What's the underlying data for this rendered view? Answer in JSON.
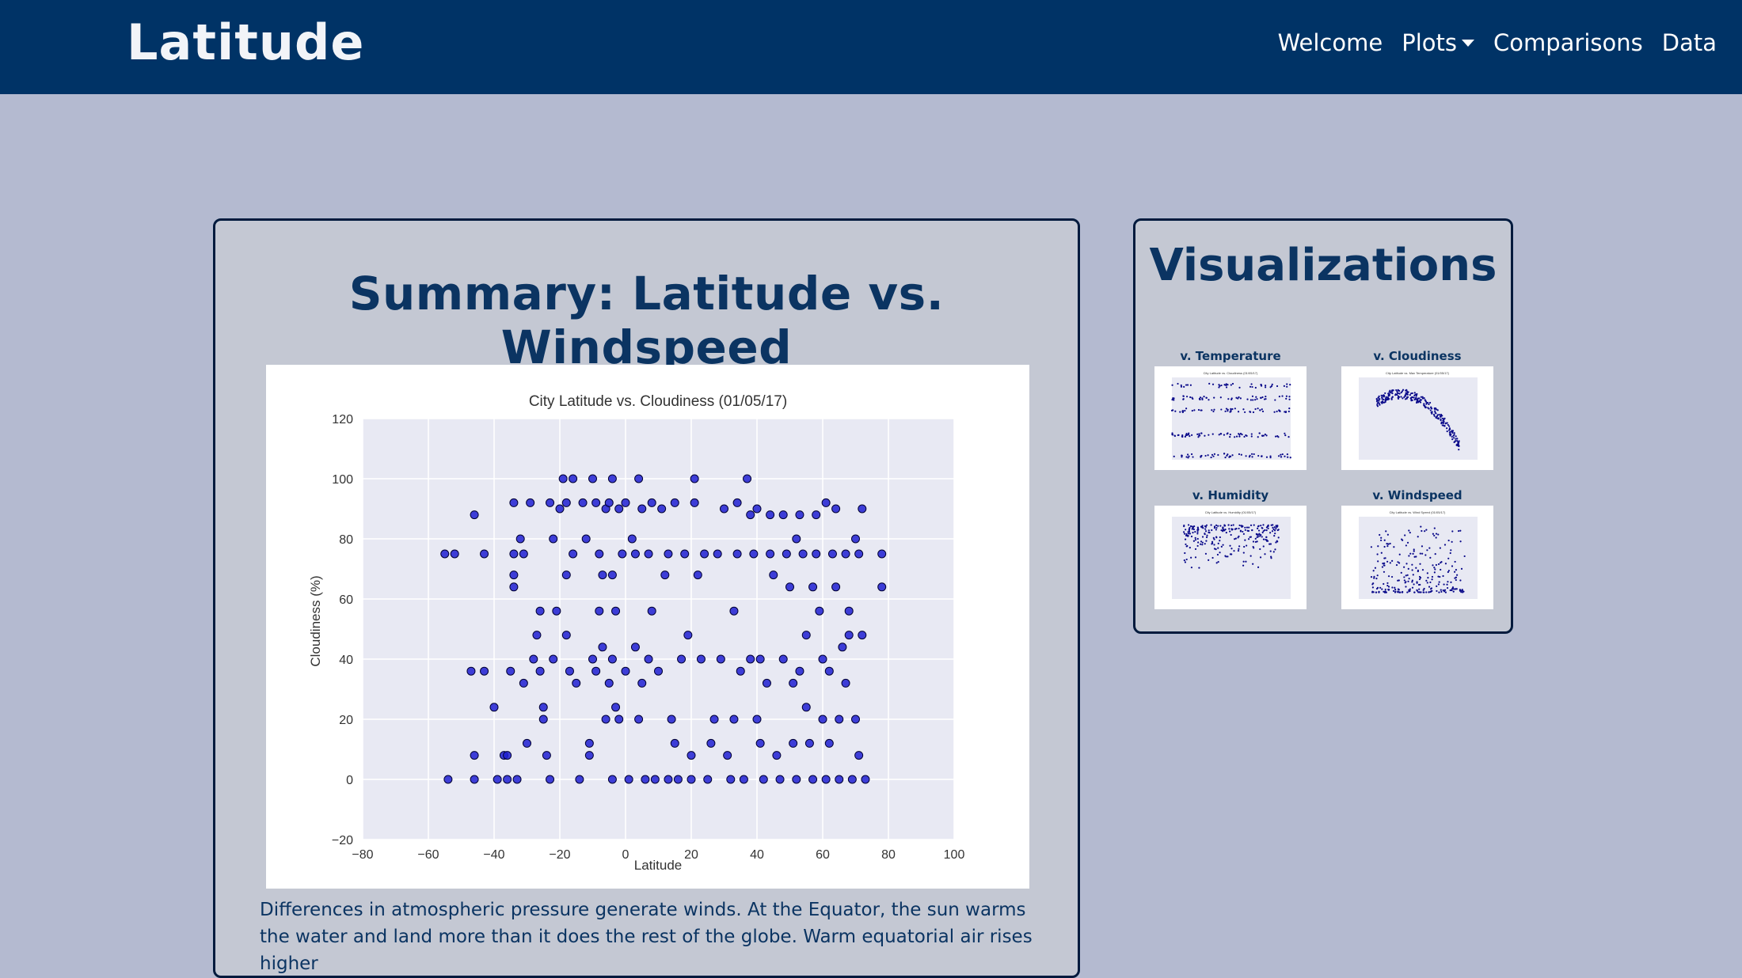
{
  "brand": "Latitude",
  "nav": {
    "items": [
      "Welcome",
      "Plots",
      "Comparisons",
      "Data"
    ]
  },
  "main": {
    "title": "Summary: Latitude vs. Windspeed",
    "text": "Differences in atmospheric pressure generate winds. At the Equator, the sun warms the water and land more than it does the rest of the globe. Warm equatorial air rises higher"
  },
  "side": {
    "title": "Visualizations",
    "thumbs": [
      {
        "label": "v. Temperature",
        "chart_title": "City Latitude vs. Cloudiness (01/05/17)"
      },
      {
        "label": "v. Cloudiness",
        "chart_title": "City Latitude vs. Max Temperature (01/05/17)"
      },
      {
        "label": "v. Humidity",
        "chart_title": "City Latitude vs. Humidity (01/05/17)"
      },
      {
        "label": "v. Windspeed",
        "chart_title": "City Latitude vs. Wind Speed (01/05/17)"
      }
    ]
  },
  "colors": {
    "navbar": "#003366",
    "background": "#b4bad0",
    "panel": "#c4c8d3",
    "heading": "#0b3462",
    "plot_bg": "#e8e9f3",
    "marker": "#1f1fd1"
  },
  "chart_data": {
    "type": "scatter",
    "title": "City Latitude vs. Cloudiness (01/05/17)",
    "xlabel": "Latitude",
    "ylabel": "Cloudiness (%)",
    "xlim": [
      -80,
      100
    ],
    "ylim": [
      -20,
      120
    ],
    "xticks": [
      -80,
      -60,
      -40,
      -20,
      0,
      20,
      40,
      60,
      80,
      100
    ],
    "yticks": [
      -20,
      0,
      20,
      40,
      60,
      80,
      100,
      120
    ],
    "grid": true,
    "points": [
      [
        -55,
        75
      ],
      [
        -52,
        75
      ],
      [
        -46,
        88
      ],
      [
        -43,
        75
      ],
      [
        -47,
        36
      ],
      [
        -43,
        36
      ],
      [
        -46,
        8
      ],
      [
        -46,
        0
      ],
      [
        -54,
        0
      ],
      [
        -40,
        24
      ],
      [
        -37,
        8
      ],
      [
        -36,
        0
      ],
      [
        -39,
        0
      ],
      [
        -34,
        92
      ],
      [
        -34,
        75
      ],
      [
        -34,
        68
      ],
      [
        -34,
        64
      ],
      [
        -35,
        36
      ],
      [
        -36,
        8
      ],
      [
        -33,
        0
      ],
      [
        -32,
        80
      ],
      [
        -31,
        75
      ],
      [
        -30,
        12
      ],
      [
        -31,
        32
      ],
      [
        -29,
        92
      ],
      [
        -28,
        40
      ],
      [
        -27,
        48
      ],
      [
        -26,
        56
      ],
      [
        -26,
        36
      ],
      [
        -25,
        20
      ],
      [
        -25,
        24
      ],
      [
        -24,
        8
      ],
      [
        -23,
        0
      ],
      [
        -23,
        92
      ],
      [
        -22,
        80
      ],
      [
        -22,
        40
      ],
      [
        -21,
        56
      ],
      [
        -20,
        90
      ],
      [
        -19,
        100
      ],
      [
        -18,
        92
      ],
      [
        -18,
        68
      ],
      [
        -18,
        48
      ],
      [
        -17,
        36
      ],
      [
        -16,
        100
      ],
      [
        -16,
        75
      ],
      [
        -15,
        32
      ],
      [
        -14,
        0
      ],
      [
        -13,
        92
      ],
      [
        -12,
        80
      ],
      [
        -11,
        12
      ],
      [
        -11,
        8
      ],
      [
        -10,
        100
      ],
      [
        -10,
        40
      ],
      [
        -9,
        36
      ],
      [
        -9,
        92
      ],
      [
        -8,
        75
      ],
      [
        -8,
        56
      ],
      [
        -7,
        68
      ],
      [
        -7,
        44
      ],
      [
        -6,
        90
      ],
      [
        -6,
        20
      ],
      [
        -5,
        32
      ],
      [
        -5,
        92
      ],
      [
        -4,
        40
      ],
      [
        -4,
        0
      ],
      [
        -4,
        68
      ],
      [
        -3,
        56
      ],
      [
        -4,
        100
      ],
      [
        -3,
        24
      ],
      [
        -2,
        90
      ],
      [
        -2,
        20
      ],
      [
        -1,
        75
      ],
      [
        0,
        92
      ],
      [
        0,
        36
      ],
      [
        1,
        0
      ],
      [
        2,
        80
      ],
      [
        3,
        75
      ],
      [
        3,
        44
      ],
      [
        4,
        100
      ],
      [
        4,
        20
      ],
      [
        5,
        90
      ],
      [
        5,
        32
      ],
      [
        6,
        0
      ],
      [
        7,
        40
      ],
      [
        7,
        75
      ],
      [
        8,
        56
      ],
      [
        8,
        92
      ],
      [
        9,
        0
      ],
      [
        10,
        36
      ],
      [
        11,
        90
      ],
      [
        12,
        68
      ],
      [
        13,
        0
      ],
      [
        13,
        75
      ],
      [
        14,
        20
      ],
      [
        15,
        92
      ],
      [
        15,
        12
      ],
      [
        16,
        0
      ],
      [
        17,
        40
      ],
      [
        18,
        75
      ],
      [
        19,
        48
      ],
      [
        20,
        8
      ],
      [
        20,
        0
      ],
      [
        21,
        100
      ],
      [
        21,
        92
      ],
      [
        22,
        68
      ],
      [
        23,
        40
      ],
      [
        24,
        75
      ],
      [
        25,
        0
      ],
      [
        26,
        12
      ],
      [
        27,
        20
      ],
      [
        28,
        75
      ],
      [
        29,
        40
      ],
      [
        30,
        90
      ],
      [
        31,
        8
      ],
      [
        32,
        0
      ],
      [
        33,
        56
      ],
      [
        33,
        20
      ],
      [
        34,
        92
      ],
      [
        34,
        75
      ],
      [
        35,
        36
      ],
      [
        36,
        0
      ],
      [
        37,
        100
      ],
      [
        38,
        40
      ],
      [
        38,
        88
      ],
      [
        39,
        75
      ],
      [
        40,
        20
      ],
      [
        40,
        90
      ],
      [
        41,
        40
      ],
      [
        41,
        12
      ],
      [
        42,
        0
      ],
      [
        43,
        32
      ],
      [
        44,
        88
      ],
      [
        44,
        75
      ],
      [
        45,
        68
      ],
      [
        46,
        8
      ],
      [
        47,
        0
      ],
      [
        48,
        40
      ],
      [
        48,
        88
      ],
      [
        49,
        75
      ],
      [
        50,
        64
      ],
      [
        51,
        32
      ],
      [
        51,
        12
      ],
      [
        52,
        0
      ],
      [
        52,
        80
      ],
      [
        53,
        36
      ],
      [
        53,
        88
      ],
      [
        54,
        75
      ],
      [
        55,
        24
      ],
      [
        55,
        48
      ],
      [
        56,
        12
      ],
      [
        57,
        0
      ],
      [
        57,
        64
      ],
      [
        58,
        88
      ],
      [
        58,
        75
      ],
      [
        59,
        56
      ],
      [
        60,
        40
      ],
      [
        60,
        20
      ],
      [
        61,
        0
      ],
      [
        61,
        92
      ],
      [
        62,
        36
      ],
      [
        62,
        12
      ],
      [
        63,
        75
      ],
      [
        64,
        64
      ],
      [
        64,
        90
      ],
      [
        65,
        0
      ],
      [
        65,
        20
      ],
      [
        66,
        44
      ],
      [
        67,
        75
      ],
      [
        67,
        32
      ],
      [
        68,
        56
      ],
      [
        68,
        48
      ],
      [
        69,
        0
      ],
      [
        70,
        80
      ],
      [
        70,
        20
      ],
      [
        71,
        75
      ],
      [
        71,
        8
      ],
      [
        72,
        90
      ],
      [
        72,
        48
      ],
      [
        73,
        0
      ],
      [
        78,
        75
      ],
      [
        78,
        64
      ]
    ]
  }
}
